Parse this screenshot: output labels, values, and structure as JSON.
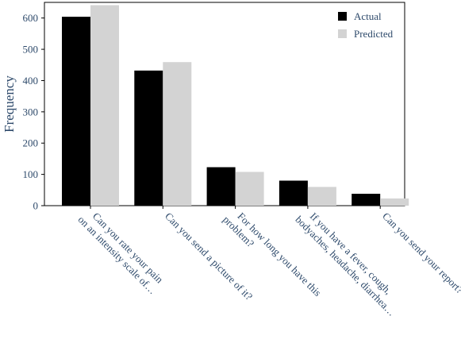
{
  "chart_data": {
    "type": "bar",
    "ylabel": "Frequency",
    "xlabel": "",
    "ylim": [
      0,
      650
    ],
    "yticks": [
      0,
      100,
      200,
      300,
      400,
      500,
      600
    ],
    "grid": false,
    "legend_position": "top-right",
    "categories": [
      [
        "Can you rate your pain",
        "on an intensity scale of…"
      ],
      [
        "Can you send a picture of it?"
      ],
      [
        "For how long you have this",
        "problem?"
      ],
      [
        "If you have a fever, cough,",
        "bodyaches, headache, diarrhea…"
      ],
      [
        "Can you send your report?"
      ]
    ],
    "series": [
      {
        "name": "Actual",
        "color": "#000000",
        "values": [
          604,
          432,
          123,
          80,
          38
        ]
      },
      {
        "name": "Predicted",
        "color": "#d3d3d3",
        "values": [
          641,
          459,
          108,
          60,
          23
        ]
      }
    ]
  }
}
